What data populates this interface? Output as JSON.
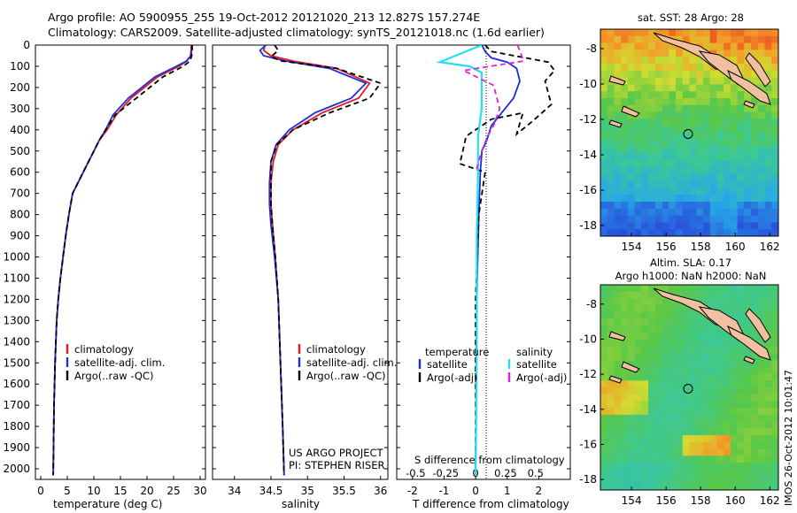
{
  "title_line1": "Argo profile: AO 5900955_255 19-Oct-2012 20121020_213 12.827S 157.274E",
  "title_line2": "Climatology: CARS2009. Satellite-adjusted climatology: synTS_20121018.nc (1.6d earlier)",
  "stamp": "IMOS 26-Oct-2012 10:01:47",
  "project_line1": "US ARGO PROJECT",
  "project_line2": "PI: STEPHEN RISER",
  "colors": {
    "clim": "#e41a1c",
    "sat": "#1a2ee0",
    "argo": "#000000",
    "sal_sat": "#22e0f0",
    "sal_argo": "#e020e0"
  },
  "chart_data": [
    {
      "type": "line",
      "id": "temperature",
      "xlabel": "temperature (deg C)",
      "xlim": [
        -1,
        31
      ],
      "xticks": [
        0,
        5,
        10,
        15,
        20,
        25,
        30
      ],
      "xtick_labels": [
        "0",
        "5",
        "10",
        "15",
        "20",
        "25",
        "30"
      ],
      "ylim": [
        2050,
        0
      ],
      "yticks": [
        0,
        100,
        200,
        300,
        400,
        500,
        600,
        700,
        800,
        900,
        1000,
        1100,
        1200,
        1300,
        1400,
        1500,
        1600,
        1700,
        1800,
        1900,
        2000
      ],
      "ytick_labels": [
        "0",
        "100",
        "200",
        "300",
        "400",
        "500",
        "600",
        "700",
        "800",
        "900",
        "1000",
        "1100",
        "1200",
        "1300",
        "1400",
        "1500",
        "1600",
        "1700",
        "1800",
        "1900",
        "2000"
      ],
      "legend": [
        "climatology",
        "satellite-adj. clim.",
        "Argo(..raw -QC)"
      ],
      "series": [
        {
          "name": "climatology",
          "color": "#e41a1c",
          "dash": "",
          "x": [
            28.3,
            28.3,
            28.2,
            27.5,
            26,
            22,
            17,
            14.2,
            12.5,
            11,
            10,
            9,
            8,
            7,
            6,
            5.3,
            4.7,
            4.2,
            3.7,
            3.3,
            3,
            2.7,
            2.5,
            2.35
          ],
          "y": [
            0,
            20,
            50,
            75,
            100,
            150,
            250,
            330,
            400,
            450,
            500,
            550,
            600,
            650,
            700,
            800,
            900,
            1000,
            1100,
            1200,
            1300,
            1500,
            1700,
            2030
          ]
        },
        {
          "name": "satellite-adj. clim.",
          "color": "#1a2ee0",
          "dash": "",
          "x": [
            28.4,
            28.4,
            28.3,
            27.4,
            25.5,
            21.5,
            16.5,
            13.6,
            12.2,
            11,
            10,
            9,
            8,
            7,
            6,
            5.3,
            4.7,
            4.2,
            3.7,
            3.3,
            3,
            2.7,
            2.5,
            2.35
          ],
          "y": [
            0,
            20,
            50,
            75,
            100,
            150,
            250,
            330,
            400,
            450,
            500,
            550,
            600,
            650,
            700,
            800,
            900,
            1000,
            1100,
            1200,
            1300,
            1500,
            1700,
            2030
          ]
        },
        {
          "name": "Argo(..raw -QC)",
          "color": "#000000",
          "dash": "6,4",
          "x": [
            28.5,
            28.5,
            28.4,
            28.1,
            26.8,
            23,
            18,
            14,
            12.2,
            11,
            10,
            9,
            8,
            7,
            6,
            5.3,
            4.7,
            4.2,
            3.7,
            3.3,
            3,
            2.7,
            2.5,
            2.35
          ],
          "y": [
            0,
            20,
            50,
            75,
            100,
            150,
            250,
            330,
            400,
            450,
            500,
            550,
            600,
            650,
            700,
            800,
            900,
            1000,
            1100,
            1200,
            1300,
            1500,
            1700,
            2030
          ]
        }
      ]
    },
    {
      "type": "line",
      "id": "salinity",
      "xlabel": "salinity",
      "xlim": [
        33.7,
        36.1
      ],
      "xticks": [
        34,
        34.5,
        35,
        35.5,
        36
      ],
      "xtick_labels": [
        "34",
        "34.5",
        "35",
        "35.5",
        "36"
      ],
      "ylim": [
        2050,
        0
      ],
      "legend": [
        "climatology",
        "satellite-adj. clim.",
        "Argo(..raw -QC)"
      ],
      "series": [
        {
          "name": "climatology",
          "color": "#e41a1c",
          "dash": "",
          "x": [
            34.42,
            34.4,
            34.5,
            34.8,
            35.4,
            35.85,
            35.7,
            35.2,
            34.8,
            34.6,
            34.53,
            34.5,
            34.5,
            34.52,
            34.56,
            34.6,
            34.63,
            34.66,
            34.68
          ],
          "y": [
            0,
            25,
            50,
            75,
            110,
            180,
            250,
            320,
            400,
            470,
            550,
            650,
            750,
            850,
            1000,
            1200,
            1500,
            1800,
            2030
          ]
        },
        {
          "name": "satellite-adj. clim.",
          "color": "#1a2ee0",
          "dash": "",
          "x": [
            34.43,
            34.35,
            34.4,
            34.7,
            35.3,
            35.8,
            35.6,
            35.1,
            34.75,
            34.57,
            34.5,
            34.48,
            34.48,
            34.5,
            34.55,
            34.6,
            34.63,
            34.66,
            34.68
          ],
          "y": [
            0,
            25,
            50,
            75,
            110,
            180,
            250,
            320,
            400,
            470,
            550,
            650,
            750,
            850,
            1000,
            1200,
            1500,
            1800,
            2030
          ]
        },
        {
          "name": "Argo(..raw -QC)",
          "color": "#000000",
          "dash": "6,4",
          "x": [
            34.55,
            34.6,
            34.5,
            34.65,
            35.4,
            36.0,
            35.85,
            35.3,
            34.8,
            34.58,
            34.5,
            34.5,
            34.5,
            34.52,
            34.56,
            34.6,
            34.63,
            34.66,
            34.68
          ],
          "y": [
            0,
            25,
            55,
            75,
            110,
            180,
            250,
            320,
            400,
            470,
            550,
            650,
            750,
            850,
            1000,
            1200,
            1500,
            1800,
            2030
          ]
        }
      ]
    },
    {
      "type": "line",
      "id": "differences",
      "xlabel": "T difference from climatology",
      "xlim": [
        -2.5,
        3
      ],
      "xticks": [
        -2,
        -1,
        0,
        1,
        2
      ],
      "xtick_labels": [
        "-2",
        "-1",
        "0",
        "1",
        "2"
      ],
      "s_xlabel": "S difference from climatology",
      "s_xticks": [
        -0.5,
        -0.25,
        0,
        0.25,
        0.5
      ],
      "s_xtick_labels": [
        "-0.5",
        "-0.25",
        "0",
        "0.25",
        "0.5"
      ],
      "ylim": [
        2050,
        0
      ],
      "legend_headers": [
        "temperature",
        "salinity"
      ],
      "legend_temp": [
        "satellite",
        "Argo(-adj)"
      ],
      "legend_sal": [
        "satellite",
        "Argo(-adj)"
      ],
      "series": [
        {
          "name": "temperature satellite",
          "color": "#1a2ee0",
          "dash": "",
          "x": [
            0.2,
            0.3,
            0.5,
            1.0,
            1.3,
            1.4,
            1.2,
            0.5,
            0.35,
            0.2,
            0.15,
            0.1,
            0.05,
            0.02,
            0
          ],
          "y": [
            0,
            30,
            60,
            80,
            110,
            170,
            250,
            380,
            450,
            500,
            600,
            800,
            1100,
            1500,
            2030
          ]
        },
        {
          "name": "temperature Argo(-adj)",
          "color": "#000000",
          "dash": "6,4",
          "x": [
            0.3,
            0.5,
            2.3,
            2.5,
            2.2,
            2.4,
            1.8,
            1.3,
            1.5,
            0.5,
            -0.3,
            -0.5,
            0.3,
            0.1,
            0,
            0
          ],
          "y": [
            0,
            30,
            80,
            120,
            170,
            280,
            360,
            420,
            320,
            350,
            430,
            560,
            600,
            800,
            1200,
            2030
          ]
        },
        {
          "name": "salinity satellite",
          "color": "#22e0f0",
          "dash": "",
          "x": [
            0.05,
            -0.3,
            -0.05,
            0.05,
            0.05,
            0.05,
            0.02,
            0.02,
            0.01,
            0.01,
            0
          ],
          "y": [
            0,
            80,
            100,
            130,
            190,
            300,
            430,
            600,
            900,
            1400,
            2030
          ]
        },
        {
          "name": "salinity Argo(-adj)",
          "color": "#e020e0",
          "dash": "6,4",
          "x": [
            0.35,
            0.4,
            -0.1,
            0.15,
            0.2,
            0.15,
            0.1,
            0.05,
            0
          ],
          "y": [
            0,
            75,
            120,
            190,
            300,
            380,
            430,
            500,
            600
          ]
        }
      ]
    },
    {
      "type": "heatmap",
      "id": "sst-map",
      "title": "sat. SST: 28 Argo: 28",
      "xlim": [
        152.2,
        162.5
      ],
      "ylim": [
        -18.6,
        -6.9
      ],
      "xticks": [
        154,
        156,
        158,
        160,
        162
      ],
      "xtick_labels": [
        "154",
        "156",
        "158",
        "160",
        "162"
      ],
      "yticks": [
        -8,
        -10,
        -12,
        -14,
        -16,
        -18
      ],
      "ytick_labels": [
        "-8",
        "-10",
        "-12",
        "-14",
        "-16",
        "-18"
      ],
      "marker": [
        157.274,
        -12.827
      ]
    },
    {
      "type": "heatmap",
      "id": "sla-map",
      "title_line1": "Altim. SLA: 0.17",
      "title_line2": "Argo h1000: NaN h2000: NaN",
      "xlim": [
        152.2,
        162.5
      ],
      "ylim": [
        -18.6,
        -6.9
      ],
      "xticks": [
        154,
        156,
        158,
        160,
        162
      ],
      "xtick_labels": [
        "154",
        "156",
        "158",
        "160",
        "162"
      ],
      "yticks": [
        -8,
        -10,
        -12,
        -14,
        -16,
        -18
      ],
      "ytick_labels": [
        "-8",
        "-10",
        "-12",
        "-14",
        "-16",
        "-18"
      ],
      "marker": [
        157.274,
        -12.827
      ]
    }
  ]
}
